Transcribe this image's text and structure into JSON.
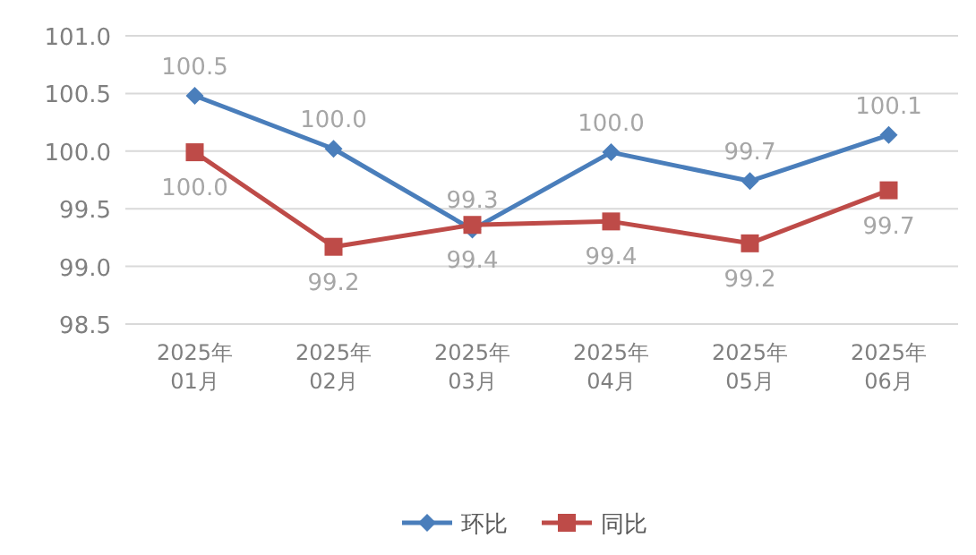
{
  "chart_data": {
    "type": "line",
    "categories": [
      "2025年\n01月",
      "2025年\n02月",
      "2025年\n03月",
      "2025年\n04月",
      "2025年\n05月",
      "2025年\n06月"
    ],
    "series": [
      {
        "name": "环比",
        "color": "#4a7ebb",
        "marker": "diamond",
        "values": [
          100.48,
          100.02,
          99.32,
          99.99,
          99.74,
          100.14
        ],
        "value_labels": [
          "100.5",
          "100.0",
          "99.3",
          "100.0",
          "99.7",
          "100.1"
        ]
      },
      {
        "name": "同比",
        "color": "#be4b48",
        "marker": "square",
        "values": [
          99.99,
          99.17,
          99.36,
          99.39,
          99.2,
          99.66
        ],
        "value_labels": [
          "100.0",
          "99.2",
          "99.4",
          "99.4",
          "99.2",
          "99.7"
        ]
      }
    ],
    "ylim": [
      98.5,
      101.0
    ],
    "yticks": [
      {
        "value": 98.5,
        "label": "98.5"
      },
      {
        "value": 99.0,
        "label": "99.0"
      },
      {
        "value": 99.5,
        "label": "99.5"
      },
      {
        "value": 100.0,
        "label": "100.0"
      },
      {
        "value": 100.5,
        "label": "100.5"
      },
      {
        "value": 101.0,
        "label": "101.0"
      }
    ],
    "grid": "y",
    "legend": "bottom"
  }
}
